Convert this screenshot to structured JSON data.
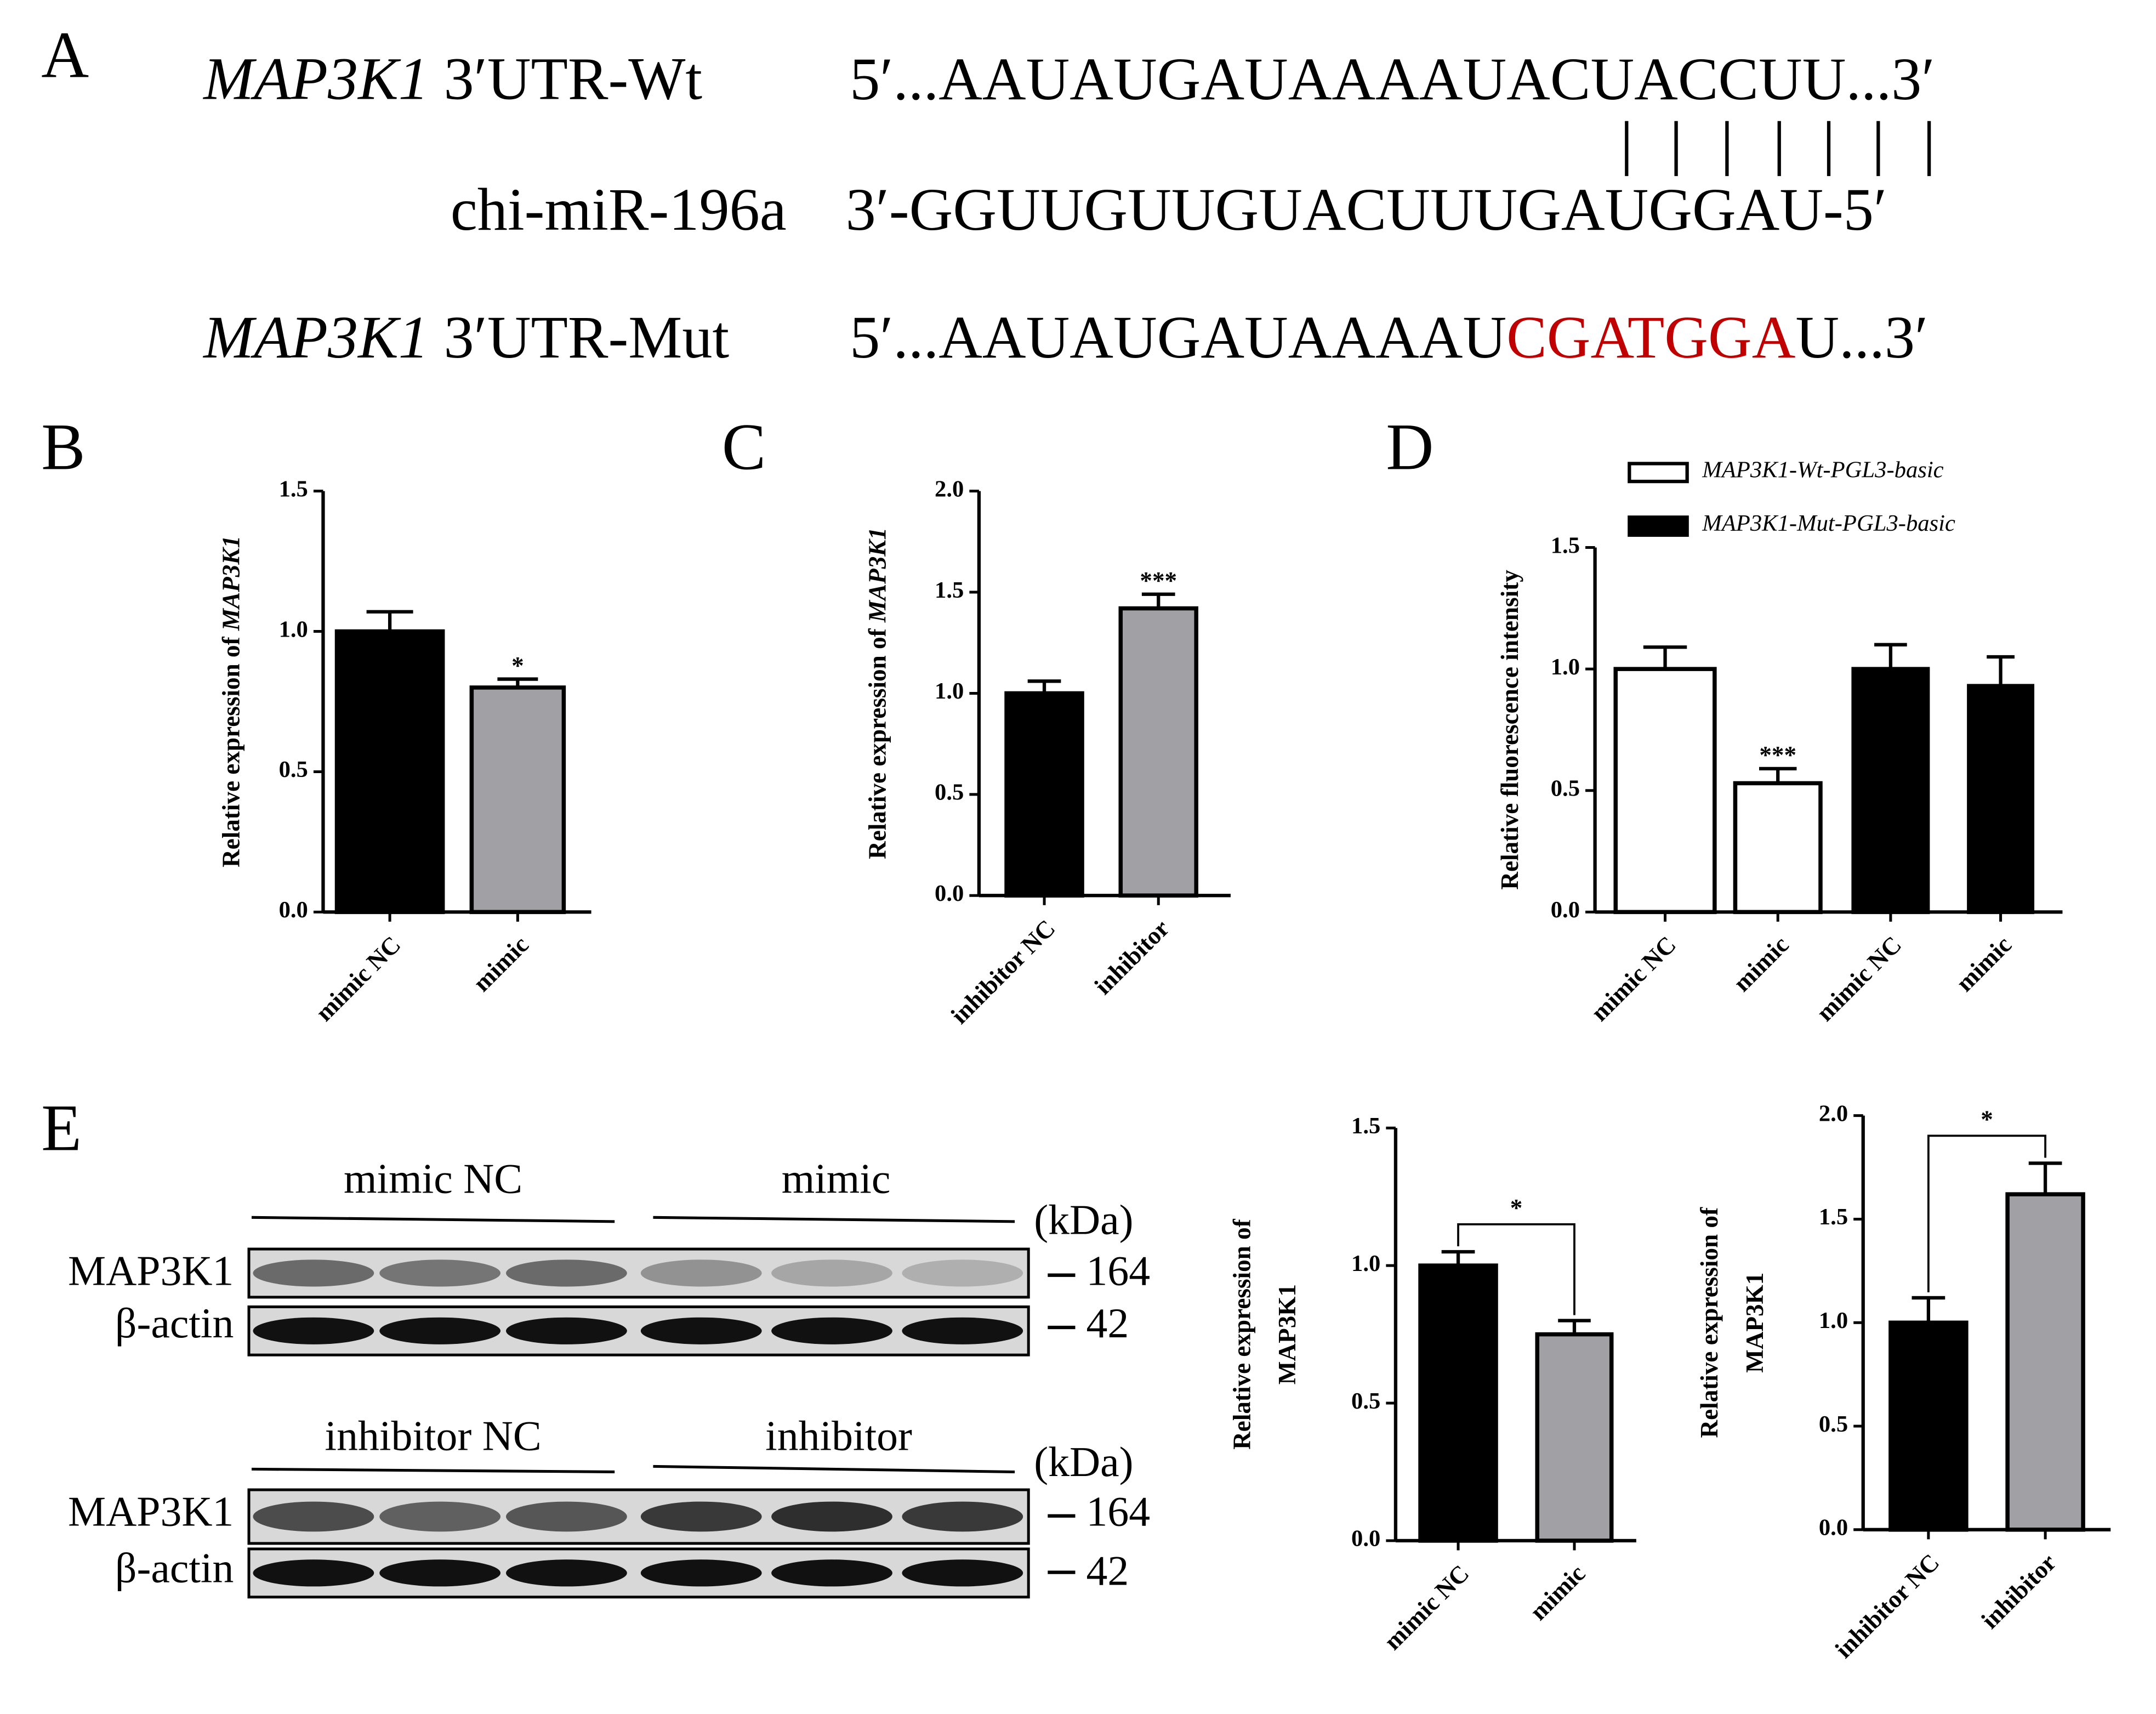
{
  "panel_labels": [
    "A",
    "B",
    "C",
    "D",
    "E"
  ],
  "sequence_alignment": {
    "wt": {
      "gene": "MAP3K1",
      "label": " 3′UTR-Wt",
      "sequence": "5′...AAUAUGAUAAAAUACUACCUU...3′"
    },
    "mirna": {
      "label": "chi-miR-196a",
      "sequence": "3′-GGUUGUUGUACUUUGAUGGAU-5′"
    },
    "mut": {
      "gene": "MAP3K1",
      "label": " 3′UTR-Mut",
      "sequence_start": "5′...AAUAUGAUAAAAU",
      "mutated": "CGATGGA",
      "sequence_end": "U...3′",
      "mutated_color": "#c00000"
    }
  },
  "western_blots": [
    {
      "groups": [
        "mimic NC",
        "mimic"
      ],
      "unit": "(kDa)",
      "rows": [
        {
          "label": "MAP3K1",
          "size": "164"
        },
        {
          "label": "β-actin",
          "size": "42"
        }
      ]
    },
    {
      "groups": [
        "inhibitor NC",
        "inhibitor"
      ],
      "unit": "(kDa)",
      "rows": [
        {
          "label": "MAP3K1",
          "size": "164"
        },
        {
          "label": "β-actin",
          "size": "42"
        }
      ]
    }
  ],
  "chart_data": [
    {
      "type": "bar",
      "y_label": "Relative expression of ",
      "y_label_italic": "MAP3K1",
      "categories": [
        "mimic NC",
        "mimic"
      ],
      "values": [
        1.0,
        0.8
      ],
      "errors": [
        0.07,
        0.03
      ],
      "colors": [
        "#000000",
        "#a0a0a5"
      ],
      "edgecolor": "#000000",
      "significance": [
        null,
        "*"
      ],
      "ylim": [
        0,
        1.5
      ],
      "yticks": [
        {
          "value": 0,
          "label": "0.0"
        },
        0.5,
        {
          "value": 1,
          "label": "1.0"
        },
        1.5
      ]
    },
    {
      "type": "bar",
      "y_label": "Relative expression of ",
      "y_label_italic": "MAP3K1",
      "categories": [
        "inhibitor NC",
        "inhibitor"
      ],
      "values": [
        1.0,
        1.42
      ],
      "errors": [
        0.06,
        0.07
      ],
      "colors": [
        "#000000",
        "#a0a0a5"
      ],
      "edgecolor": "#000000",
      "significance": [
        null,
        "***"
      ],
      "ylim": [
        0,
        2
      ],
      "yticks": [
        {
          "value": 0,
          "label": "0.0"
        },
        0.5,
        {
          "value": 1,
          "label": "1.0"
        },
        1.5,
        {
          "value": 2,
          "label": "2.0"
        }
      ]
    },
    {
      "type": "bar",
      "y_label": "Relative fluorescence intensity",
      "categories": [
        "mimic NC",
        "mimic",
        "mimic NC",
        "mimic"
      ],
      "edgecolor": "#000000",
      "series": [
        {
          "name": "MAP3K1-Wt-PGL3-basic",
          "color": "#ffffff",
          "values": [
            1.0,
            0.53,
            null,
            null
          ],
          "errors": [
            0.09,
            0.06,
            null,
            null
          ]
        },
        {
          "name": "MAP3K1-Mut-PGL3-basic",
          "color": "#000000",
          "values": [
            null,
            null,
            1.0,
            0.93
          ],
          "errors": [
            null,
            null,
            0.1,
            0.12
          ]
        }
      ],
      "significance": [
        null,
        "***",
        null,
        null
      ],
      "ylim": [
        0,
        1.5
      ],
      "yticks": [
        {
          "value": 0,
          "label": "0.0"
        },
        0.5,
        {
          "value": 1,
          "label": "1.0"
        },
        1.5
      ]
    },
    {
      "type": "bar",
      "y_label_lines": [
        "Relative expression of",
        "MAP3K1"
      ],
      "categories": [
        "mimic NC",
        "mimic"
      ],
      "values": [
        1.0,
        0.75
      ],
      "errors": [
        0.05,
        0.05
      ],
      "colors": [
        "#000000",
        "#a0a0a5"
      ],
      "edgecolor": "#000000",
      "bracket_label": "*",
      "ylim": [
        0,
        1.5
      ],
      "yticks": [
        {
          "value": 0,
          "label": "0.0"
        },
        0.5,
        {
          "value": 1,
          "label": "1.0"
        },
        1.5
      ]
    },
    {
      "type": "bar",
      "y_label_lines": [
        "Relative expression of",
        "MAP3K1"
      ],
      "categories": [
        "inhibitor NC",
        "inhibitor"
      ],
      "values": [
        1.0,
        1.62
      ],
      "errors": [
        0.12,
        0.15
      ],
      "colors": [
        "#000000",
        "#a0a0a5"
      ],
      "edgecolor": "#000000",
      "bracket_label": "*",
      "ylim": [
        0,
        2
      ],
      "yticks": [
        {
          "value": 0,
          "label": "0.0"
        },
        0.5,
        {
          "value": 1,
          "label": "1.0"
        },
        1.5,
        {
          "value": 2,
          "label": "2.0"
        }
      ]
    }
  ]
}
